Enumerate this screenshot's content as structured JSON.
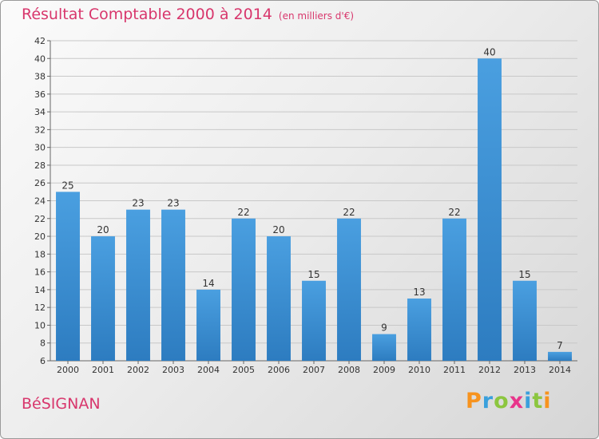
{
  "title": "Résultat Comptable 2000 à 2014",
  "subtitle": "(en milliers d'€)",
  "commune": "BéSIGNAN",
  "logo": {
    "letters": [
      "P",
      "r",
      "o",
      "x",
      "i",
      "t",
      "i"
    ],
    "colors": [
      "#f7931e",
      "#3aa0dc",
      "#8cc63f",
      "#e8358b",
      "#3aa0dc",
      "#8cc63f",
      "#f7931e"
    ]
  },
  "colors": {
    "bar": "#4a9fe0",
    "bar_dark": "#2d7cc0",
    "title": "#d8366c",
    "grid": "#c8c8c8"
  },
  "chart_data": {
    "type": "bar",
    "title": "Résultat Comptable 2000 à 2014",
    "ylabel": "",
    "xlabel": "",
    "categories": [
      "2000",
      "2001",
      "2002",
      "2003",
      "2004",
      "2005",
      "2006",
      "2007",
      "2008",
      "2009",
      "2010",
      "2011",
      "2012",
      "2013",
      "2014"
    ],
    "values": [
      25,
      20,
      23,
      23,
      14,
      22,
      20,
      15,
      22,
      9,
      13,
      22,
      40,
      15,
      7
    ],
    "ylim": [
      6,
      42
    ],
    "yticks": [
      6,
      8,
      10,
      12,
      14,
      16,
      18,
      20,
      22,
      24,
      26,
      28,
      30,
      32,
      34,
      36,
      38,
      40,
      42
    ],
    "grid": true
  }
}
